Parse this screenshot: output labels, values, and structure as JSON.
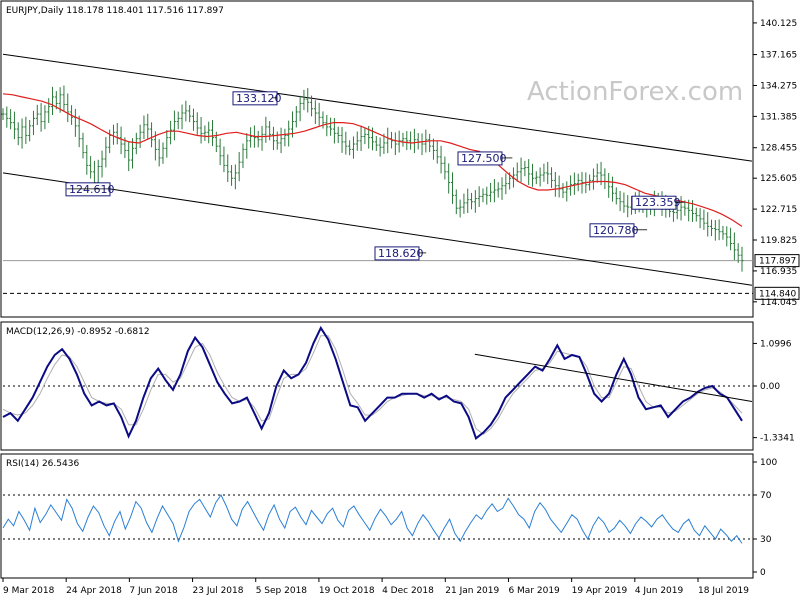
{
  "chart_data": [
    {
      "type": "candlestick",
      "instrument_header": "EURJPY,Daily  118.178 118.401 117.516 117.897",
      "watermark": "ActionForex.com",
      "y_ticks": [
        "140.125",
        "137.165",
        "134.275",
        "131.385",
        "128.455",
        "125.605",
        "122.715",
        "119.825",
        "116.935",
        "114.045"
      ],
      "ylim": [
        113.0,
        141.8
      ],
      "current_price": 117.897,
      "current_price_label": "117.897",
      "support_level": 114.84,
      "support_label": "114.840",
      "colors": {
        "bars": "#2b7a3b",
        "ma": "#e01e1e",
        "channel": "#000000",
        "annotation": "#1a1a7a"
      },
      "series": [
        {
          "type": "ohlc-bars",
          "close": [
            131.6,
            131.2,
            130.8,
            130.2,
            129.4,
            130.4,
            129.6,
            130.5,
            131.2,
            131.6,
            130.9,
            131.8,
            132.3,
            133.2,
            132.6,
            133.4,
            132.5,
            131.8,
            131.3,
            130.5,
            129.3,
            128.0,
            126.8,
            126.2,
            125.2,
            126.7,
            127.4,
            128.5,
            129.6,
            129.9,
            129.4,
            128.8,
            128.2,
            127.3,
            128.4,
            129.3,
            129.9,
            130.6,
            130.2,
            129.2,
            128.3,
            127.5,
            128.4,
            129.4,
            130.1,
            130.9,
            131.2,
            131.7,
            131.9,
            131.4,
            130.9,
            130.3,
            129.8,
            129.9,
            130.1,
            129.4,
            128.6,
            127.7,
            126.8,
            126.2,
            125.6,
            126.1,
            127.1,
            128.3,
            129.1,
            129.5,
            129.4,
            129.2,
            129.7,
            130.4,
            129.7,
            129.1,
            128.9,
            129.3,
            129.6,
            130.2,
            130.9,
            131.8,
            132.6,
            133.0,
            132.7,
            132.1,
            131.7,
            131.3,
            130.8,
            130.4,
            130.2,
            129.8,
            129.6,
            129.0,
            128.6,
            128.3,
            128.8,
            129.1,
            129.5,
            129.7,
            129.4,
            129.0,
            128.7,
            128.5,
            128.9,
            129.3,
            129.1,
            128.8,
            129.1,
            129.3,
            129.1,
            128.9,
            129.2,
            129.0,
            128.8,
            129.2,
            128.6,
            128.2,
            127.6,
            127.0,
            126.2,
            125.2,
            124.0,
            122.8,
            122.9,
            123.3,
            123.6,
            123.4,
            123.7,
            123.9,
            124.1,
            124.0,
            124.3,
            124.5,
            124.6,
            124.9,
            125.1,
            125.6,
            125.9,
            126.2,
            126.5,
            126.6,
            126.0,
            125.6,
            125.7,
            125.9,
            126.1,
            126.0,
            125.4,
            124.9,
            124.6,
            124.3,
            124.6,
            125.0,
            125.1,
            125.4,
            125.2,
            125.0,
            125.4,
            125.8,
            126.1,
            125.9,
            125.3,
            124.8,
            124.2,
            123.7,
            123.4,
            123.0,
            122.9,
            123.3,
            123.5,
            123.2,
            122.9,
            122.8,
            123.0,
            123.4,
            123.6,
            123.1,
            122.7,
            122.5,
            122.4,
            122.6,
            122.9,
            122.8,
            122.6,
            122.3,
            122.1,
            121.8,
            121.4,
            121.1,
            120.9,
            120.8,
            120.6,
            120.4,
            120.1,
            119.5,
            118.9,
            118.4,
            117.9
          ]
        },
        {
          "type": "moving-average",
          "values": [
            133.5,
            133.4,
            133.2,
            133.0,
            132.8,
            132.5,
            132.0,
            131.5,
            131.1,
            130.7,
            130.2,
            129.7,
            129.3,
            129.0,
            128.9,
            129.3,
            129.7,
            130.0,
            130.0,
            129.8,
            129.6,
            129.5,
            129.6,
            129.8,
            129.9,
            129.7,
            129.5,
            129.5,
            129.6,
            129.7,
            129.8,
            130.0,
            130.3,
            130.6,
            130.8,
            130.8,
            130.7,
            130.4,
            130.0,
            129.6,
            129.2,
            129.0,
            128.9,
            129.0,
            129.1,
            129.1,
            128.9,
            128.6,
            128.3,
            128.1,
            127.5,
            126.8,
            126.0,
            125.3,
            124.8,
            124.5,
            124.5,
            124.6,
            124.8,
            125.0,
            125.2,
            125.3,
            125.3,
            125.2,
            125.0,
            124.6,
            124.2,
            124.0,
            123.8,
            123.6,
            123.4,
            123.2,
            122.9,
            122.6,
            122.2,
            121.7,
            121.1
          ]
        }
      ],
      "channel": {
        "upper": [
          [
            0,
            137.2
          ],
          [
            1,
            127.2
          ]
        ],
        "lower": [
          [
            0,
            126.1
          ],
          [
            1,
            115.6
          ]
        ]
      },
      "annotations": [
        {
          "label": "133.120",
          "value": 133.12
        },
        {
          "label": "124.610",
          "value": 124.61
        },
        {
          "label": "127.500",
          "value": 127.5
        },
        {
          "label": "123.359",
          "value": 123.359
        },
        {
          "label": "120.780",
          "value": 120.78
        },
        {
          "label": "118.620",
          "value": 118.62
        }
      ],
      "x_ticks": [
        "9 Mar 2018",
        "24 Apr 2018",
        "7 Jun 2018",
        "23 Jul 2018",
        "5 Sep 2018",
        "19 Oct 2018",
        "4 Dec 2018",
        "21 Jan 2019",
        "6 Mar 2019",
        "19 Apr 2019",
        "4 Jun 2019",
        "18 Jul 2019"
      ]
    },
    {
      "type": "line",
      "header": "MACD(12,26,9) -0.8952 -0.6812",
      "y_ticks": [
        "1.0996",
        "0.00",
        "-1.3341"
      ],
      "ylim": [
        -1.55,
        1.55
      ],
      "zero_line": 0.0,
      "colors": {
        "macd": "#0b0b85",
        "signal": "#b0b0b0",
        "trend": "#000000"
      },
      "series": [
        {
          "name": "",
          "values": [
            -0.8,
            -0.7,
            -0.9,
            -0.6,
            -0.3,
            0.1,
            0.5,
            0.8,
            0.95,
            0.7,
            0.3,
            -0.2,
            -0.5,
            -0.4,
            -0.5,
            -0.45,
            -0.8,
            -1.3,
            -0.9,
            -0.3,
            0.2,
            0.45,
            0.15,
            -0.1,
            0.3,
            0.9,
            1.25,
            1.0,
            0.55,
            0.1,
            -0.2,
            -0.45,
            -0.4,
            -0.3,
            -0.7,
            -1.1,
            -0.7,
            0.0,
            0.4,
            0.2,
            0.3,
            0.6,
            1.1,
            1.5,
            1.2,
            0.7,
            0.1,
            -0.5,
            -0.55,
            -0.9,
            -0.7,
            -0.5,
            -0.3,
            -0.3,
            -0.2,
            -0.2,
            -0.2,
            -0.3,
            -0.2,
            -0.35,
            -0.25,
            -0.4,
            -0.45,
            -0.8,
            -1.35,
            -1.2,
            -1.0,
            -0.7,
            -0.3,
            -0.1,
            0.1,
            0.3,
            0.5,
            0.4,
            0.7,
            1.05,
            0.7,
            0.8,
            0.75,
            0.3,
            -0.2,
            -0.4,
            -0.2,
            0.3,
            0.7,
            0.3,
            -0.3,
            -0.6,
            -0.55,
            -0.5,
            -0.8,
            -0.6,
            -0.4,
            -0.3,
            -0.15,
            -0.05,
            0.0,
            -0.2,
            -0.3,
            -0.6,
            -0.9
          ]
        },
        {
          "name": "",
          "values": [
            -0.6,
            -0.7,
            -0.75,
            -0.7,
            -0.5,
            -0.2,
            0.2,
            0.55,
            0.8,
            0.75,
            0.5,
            0.1,
            -0.3,
            -0.4,
            -0.45,
            -0.45,
            -0.6,
            -1.0,
            -1.0,
            -0.6,
            -0.1,
            0.3,
            0.3,
            0.1,
            0.2,
            0.6,
            1.0,
            1.1,
            0.8,
            0.35,
            0.0,
            -0.3,
            -0.4,
            -0.35,
            -0.55,
            -0.9,
            -0.85,
            -0.3,
            0.2,
            0.3,
            0.3,
            0.45,
            0.85,
            1.3,
            1.3,
            0.95,
            0.4,
            -0.2,
            -0.45,
            -0.75,
            -0.75,
            -0.6,
            -0.4,
            -0.3,
            -0.25,
            -0.2,
            -0.2,
            -0.25,
            -0.25,
            -0.3,
            -0.3,
            -0.35,
            -0.4,
            -0.6,
            -1.1,
            -1.25,
            -1.1,
            -0.85,
            -0.5,
            -0.2,
            0.0,
            0.2,
            0.4,
            0.45,
            0.6,
            0.9,
            0.85,
            0.8,
            0.75,
            0.5,
            0.0,
            -0.3,
            -0.3,
            0.1,
            0.5,
            0.45,
            0.0,
            -0.4,
            -0.55,
            -0.55,
            -0.7,
            -0.65,
            -0.5,
            -0.35,
            -0.2,
            -0.1,
            -0.05,
            -0.15,
            -0.3,
            -0.5,
            -0.7
          ]
        }
      ],
      "trendline": [
        [
          0.63,
          0.82
        ],
        [
          1,
          -0.4
        ]
      ]
    },
    {
      "type": "line",
      "header": "RSI(14) 26.5436",
      "y_ticks": [
        "100",
        "70",
        "30",
        "0"
      ],
      "ylim": [
        0,
        100
      ],
      "dashed_levels": [
        70,
        30
      ],
      "colors": {
        "rsi": "#2a7fd6"
      },
      "series": [
        {
          "name": "",
          "values": [
            40,
            48,
            42,
            55,
            47,
            38,
            58,
            45,
            52,
            61,
            54,
            47,
            66,
            58,
            44,
            37,
            50,
            60,
            54,
            42,
            33,
            46,
            55,
            39,
            50,
            64,
            58,
            45,
            36,
            49,
            60,
            52,
            44,
            28,
            40,
            55,
            62,
            66,
            58,
            50,
            63,
            70,
            60,
            48,
            42,
            57,
            64,
            55,
            46,
            38,
            52,
            61,
            48,
            40,
            55,
            59,
            50,
            43,
            56,
            50,
            44,
            53,
            58,
            47,
            41,
            56,
            60,
            52,
            45,
            38,
            49,
            57,
            51,
            43,
            48,
            55,
            40,
            33,
            44,
            52,
            46,
            38,
            31,
            40,
            48,
            35,
            28,
            37,
            45,
            52,
            48,
            56,
            62,
            55,
            58,
            67,
            60,
            52,
            48,
            40,
            55,
            63,
            57,
            48,
            42,
            36,
            44,
            52,
            48,
            38,
            30,
            42,
            50,
            45,
            36,
            40,
            47,
            42,
            35,
            44,
            50,
            46,
            41,
            48,
            52,
            45,
            39,
            36,
            44,
            48,
            38,
            33,
            42,
            36,
            30,
            39,
            34,
            28,
            33,
            26
          ]
        }
      ]
    }
  ]
}
